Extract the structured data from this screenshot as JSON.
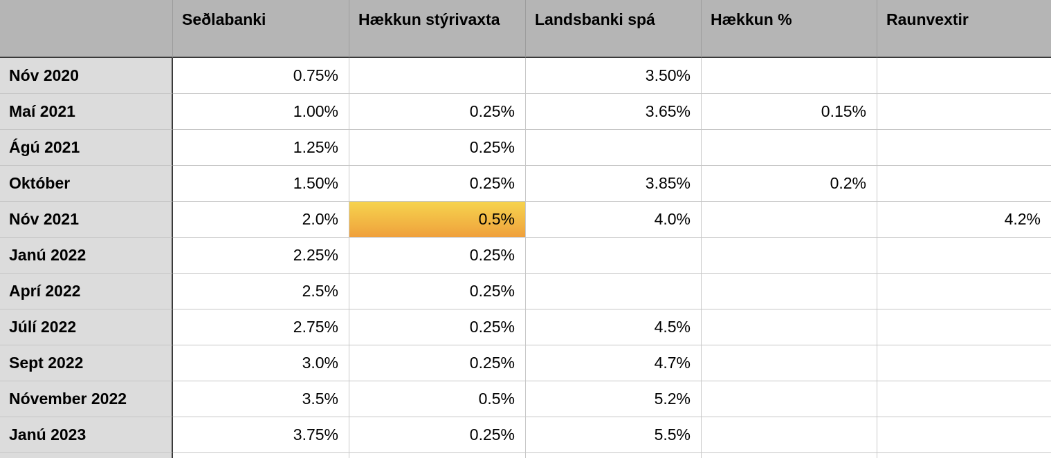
{
  "app": {
    "type": "spreadsheet-table",
    "language": "Icelandic"
  },
  "colors": {
    "header_background": "#b5b5b5",
    "row_label_background": "#dcdcdc",
    "cell_background": "#ffffff",
    "grid_line_light": "#c5c5c5",
    "grid_line_dark": "#3a3a3a",
    "highlight_gradient_top": "#f6d44e",
    "highlight_gradient_bottom": "#efa03c",
    "text": "#000000"
  },
  "table": {
    "corner_label": "",
    "columns": [
      "Seðlabanki",
      "Hækkun stýrivaxta",
      "Landsbanki spá",
      "Hækkun %",
      "Raunvextir"
    ],
    "rows": [
      {
        "label": "Nóv 2020",
        "values": [
          "0.75%",
          "",
          "3.50%",
          "",
          ""
        ],
        "highlight_col": null
      },
      {
        "label": "Maí 2021",
        "values": [
          "1.00%",
          "0.25%",
          "3.65%",
          "0.15%",
          ""
        ],
        "highlight_col": null
      },
      {
        "label": "Ágú 2021",
        "values": [
          "1.25%",
          "0.25%",
          "",
          "",
          ""
        ],
        "highlight_col": null
      },
      {
        "label": "Október",
        "values": [
          "1.50%",
          "0.25%",
          "3.85%",
          "0.2%",
          ""
        ],
        "highlight_col": null
      },
      {
        "label": "Nóv 2021",
        "values": [
          "2.0%",
          "0.5%",
          "4.0%",
          "",
          "4.2%"
        ],
        "highlight_col": 1
      },
      {
        "label": "Janú 2022",
        "values": [
          "2.25%",
          "0.25%",
          "",
          "",
          ""
        ],
        "highlight_col": null
      },
      {
        "label": "Aprí 2022",
        "values": [
          "2.5%",
          "0.25%",
          "",
          "",
          ""
        ],
        "highlight_col": null
      },
      {
        "label": "Júlí 2022",
        "values": [
          "2.75%",
          "0.25%",
          "4.5%",
          "",
          ""
        ],
        "highlight_col": null
      },
      {
        "label": "Sept 2022",
        "values": [
          "3.0%",
          "0.25%",
          "4.7%",
          "",
          ""
        ],
        "highlight_col": null
      },
      {
        "label": "Nóvember 2022",
        "values": [
          "3.5%",
          "0.5%",
          "5.2%",
          "",
          ""
        ],
        "highlight_col": null
      },
      {
        "label": "Janú 2023",
        "values": [
          "3.75%",
          "0.25%",
          "5.5%",
          "",
          ""
        ],
        "highlight_col": null
      }
    ],
    "highlighted_cell": {
      "row": "Nóv 2021",
      "column": "Hækkun stýrivaxta",
      "value": "0.5%"
    },
    "partial_row_visible_at_bottom": true
  }
}
